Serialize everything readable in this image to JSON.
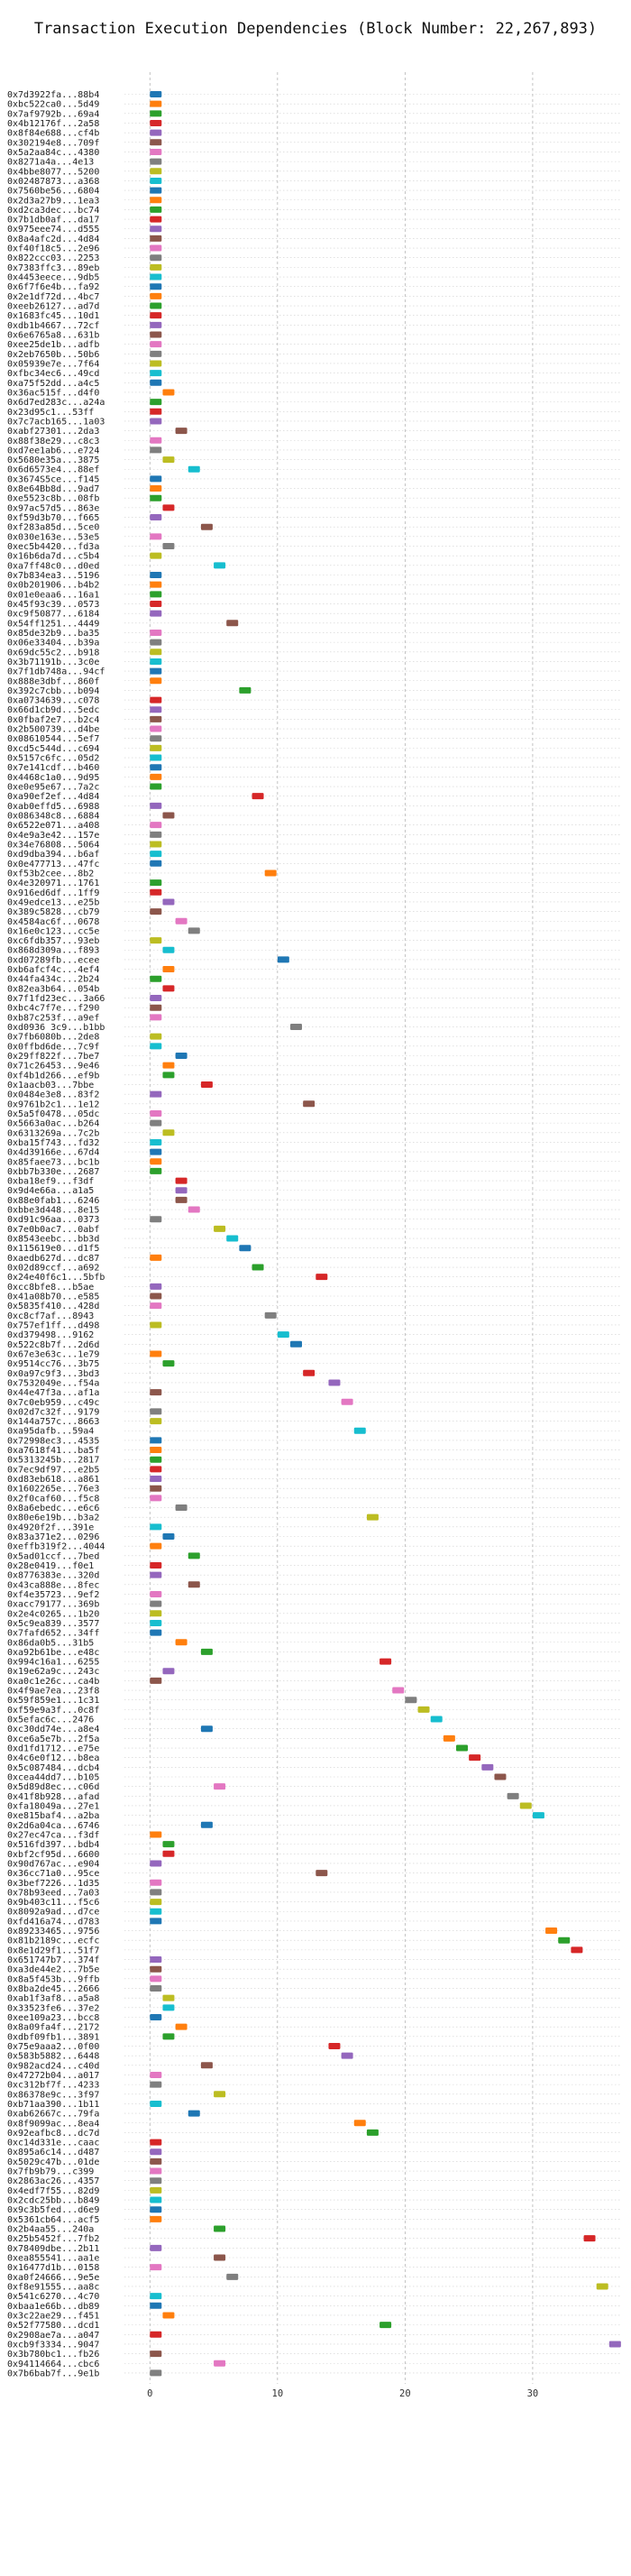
{
  "chart_data": {
    "type": "bar",
    "orientation": "horizontal-gantt",
    "title": "Transaction Execution Dependencies (Block Number: 22,267,893)",
    "xlabel": "",
    "ylabel": "",
    "xlim": [
      -2,
      37
    ],
    "xticks": [
      0,
      10,
      20,
      30
    ],
    "grid": true,
    "legend": "none",
    "palette": [
      "#1f77b4",
      "#ff7f0e",
      "#2ca02c",
      "#d62728",
      "#9467bd",
      "#8c564b",
      "#e377c2",
      "#7f7f7f",
      "#bcbd22",
      "#17becf"
    ],
    "transactions": [
      {
        "label": "0x7d3922fa...88b4",
        "start": 0
      },
      {
        "label": "0xbc522ca0...5d49",
        "start": 0
      },
      {
        "label": "0x7af9792b...69a4",
        "start": 0
      },
      {
        "label": "0x4b12176f...2a58",
        "start": 0
      },
      {
        "label": "0x8f84e688...cf4b",
        "start": 0
      },
      {
        "label": "0x302194e8...709f",
        "start": 0
      },
      {
        "label": "0x5a2aa84c...4380",
        "start": 0
      },
      {
        "label": "0x8271a4a...4e13",
        "start": 0
      },
      {
        "label": "0x4bbe8077...5200",
        "start": 0
      },
      {
        "label": "0x02487873...a368",
        "start": 0
      },
      {
        "label": "0x7560be56...6804",
        "start": 0
      },
      {
        "label": "0x2d3a27b9...1ea3",
        "start": 0
      },
      {
        "label": "0xd2ca3dec...bc74",
        "start": 0
      },
      {
        "label": "0x7b1db0af...da17",
        "start": 0
      },
      {
        "label": "0x975eee74...d555",
        "start": 0
      },
      {
        "label": "0x8a4afc2d...4d84",
        "start": 0
      },
      {
        "label": "0xf40f18c5...2e96",
        "start": 0
      },
      {
        "label": "0x822ccc03...2253",
        "start": 0
      },
      {
        "label": "0x7383ffc3...89eb",
        "start": 0
      },
      {
        "label": "0x4453eece...9db5",
        "start": 0
      },
      {
        "label": "0x6f7f6e4b...fa92",
        "start": 0
      },
      {
        "label": "0x2e1df72d...4bc7",
        "start": 0
      },
      {
        "label": "0xeeb26127...ad7d",
        "start": 0
      },
      {
        "label": "0x1683fc45...10d1",
        "start": 0
      },
      {
        "label": "0xdb1b4667...72cf",
        "start": 0
      },
      {
        "label": "0x6e6765a8...631b",
        "start": 0
      },
      {
        "label": "0xee25de1b...adfb",
        "start": 0
      },
      {
        "label": "0x2eb7650b...50b6",
        "start": 0
      },
      {
        "label": "0x05939e7e...7f64",
        "start": 0
      },
      {
        "label": "0xfbc34ec6...49cd",
        "start": 0
      },
      {
        "label": "0xa75f52dd...a4c5",
        "start": 0
      },
      {
        "label": "0x36ac515f...d4f0",
        "start": 1
      },
      {
        "label": "0x6d7ed283c...a24a",
        "start": 0
      },
      {
        "label": "0x23d95c1...53ff",
        "start": 0
      },
      {
        "label": "0x7c7acb165...1a03",
        "start": 0
      },
      {
        "label": "0xabf27301...2da3",
        "start": 2
      },
      {
        "label": "0x88f38e29...c8c3",
        "start": 0
      },
      {
        "label": "0xd7ee1ab6...e724",
        "start": 0
      },
      {
        "label": "0x5680e35a...3875",
        "start": 1
      },
      {
        "label": "0x6d6573e4...88ef",
        "start": 3
      },
      {
        "label": "0x3674S5ce...f145",
        "start": 0
      },
      {
        "label": "0x8e64Bb8d...9ad7",
        "start": 0
      },
      {
        "label": "0xe5523c8b...08fb",
        "start": 0
      },
      {
        "label": "0x97ac57d5...863e",
        "start": 1
      },
      {
        "label": "0xf59d3b70...f665",
        "start": 0
      },
      {
        "label": "0xf283a85d...5ce0",
        "start": 4
      },
      {
        "label": "0x030e163e...53e5",
        "start": 0
      },
      {
        "label": "0xec5b4420...fd3a",
        "start": 1
      },
      {
        "label": "0x16b6da7d...c5b4",
        "start": 0
      },
      {
        "label": "0xa7ff48c0...d0ed",
        "start": 5
      },
      {
        "label": "0x7b834ea3...5196",
        "start": 0
      },
      {
        "label": "0x0b201906...b4b2",
        "start": 0
      },
      {
        "label": "0x01e0eaa6...16a1",
        "start": 0
      },
      {
        "label": "0x45f93c39...0573",
        "start": 0
      },
      {
        "label": "0xc9f50877...6184",
        "start": 0
      },
      {
        "label": "0x54ff1251...4449",
        "start": 6
      },
      {
        "label": "0x85de32b9...ba35",
        "start": 0
      },
      {
        "label": "0x06e33404...b39a",
        "start": 0
      },
      {
        "label": "0x69dc55c2...b918",
        "start": 0
      },
      {
        "label": "0x3b71191b...3c0e",
        "start": 0
      },
      {
        "label": "0x7f1db748a...94cf",
        "start": 0
      },
      {
        "label": "0x888e3dbf...860f",
        "start": 0
      },
      {
        "label": "0x392c7cbb...b094",
        "start": 7
      },
      {
        "label": "0xa0734639...c078",
        "start": 0
      },
      {
        "label": "0x66d1cb9d...5edc",
        "start": 0
      },
      {
        "label": "0x0fbaf2e7...b2c4",
        "start": 0
      },
      {
        "label": "0x2b500739...d4be",
        "start": 0
      },
      {
        "label": "0x08610544...5ef7",
        "start": 0
      },
      {
        "label": "0xcd5c544d...c694",
        "start": 0
      },
      {
        "label": "0x5157c6fc...05d2",
        "start": 0
      },
      {
        "label": "0x7e141cdf...b460",
        "start": 0
      },
      {
        "label": "0x4468c1a0...9d95",
        "start": 0
      },
      {
        "label": "0xe0e95e67...7a2c",
        "start": 0
      },
      {
        "label": "0xa90ef2ef...4d84",
        "start": 8
      },
      {
        "label": "0xab0effd5...6988",
        "start": 0
      },
      {
        "label": "0x086348c8...6884",
        "start": 1
      },
      {
        "label": "0x6522e071...a408",
        "start": 0
      },
      {
        "label": "0x4e9a3e42...157e",
        "start": 0
      },
      {
        "label": "0x34e76808...5064",
        "start": 0
      },
      {
        "label": "0xd9dba394...b6af",
        "start": 0
      },
      {
        "label": "0x0e477713...47fc",
        "start": 0
      },
      {
        "label": "0xf53b2cee...8b2",
        "start": 9
      },
      {
        "label": "0x4e320971...1761",
        "start": 0
      },
      {
        "label": "0x916ed6df...1ff9",
        "start": 0
      },
      {
        "label": "0x49edce13...e25b",
        "start": 1
      },
      {
        "label": "0x389c5828...cb79",
        "start": 0
      },
      {
        "label": "0x4584ac6f...0678",
        "start": 2
      },
      {
        "label": "0x16e0c123...cc5e",
        "start": 3
      },
      {
        "label": "0xc6fdb357...93eb",
        "start": 0
      },
      {
        "label": "0x868d309a...f893",
        "start": 1
      },
      {
        "label": "0xd07289fb...ecee",
        "start": 10
      },
      {
        "label": "0xb6afcf4c...4ef4",
        "start": 1
      },
      {
        "label": "0x44fa434c...2b24",
        "start": 0
      },
      {
        "label": "0x82ea3b64...054b",
        "start": 1
      },
      {
        "label": "0x7f1fd23ec...3a66",
        "start": 0
      },
      {
        "label": "0xbc4c7f7e...f290",
        "start": 0
      },
      {
        "label": "0xb87c253f...a9ef",
        "start": 0
      },
      {
        "label": "0xd0936 3c9...b1bb",
        "start": 11
      },
      {
        "label": "0x7fb6080b...2de8",
        "start": 0
      },
      {
        "label": "0x0ffbd6de...7c9f",
        "start": 0
      },
      {
        "label": "0x29ff822f...7be7",
        "start": 2
      },
      {
        "label": "0x71c26453...9e46",
        "start": 1
      },
      {
        "label": "0xf4b1d266...ef9b",
        "start": 1
      },
      {
        "label": "0x1aacb03...7bbe",
        "start": 4
      },
      {
        "label": "0x0484e3e8...83f2",
        "start": 0
      },
      {
        "label": "0x9761b2c1...1e12",
        "start": 12
      },
      {
        "label": "0x5a5f0478...05dc",
        "start": 0
      },
      {
        "label": "0x5663a0ac...b264",
        "start": 0
      },
      {
        "label": "0x6313269a...7c2b",
        "start": 1
      },
      {
        "label": "0xba15f743...fd32",
        "start": 0
      },
      {
        "label": "0x4d39166e...67d4",
        "start": 0
      },
      {
        "label": "0x85faee73...bc1b",
        "start": 0
      },
      {
        "label": "0xbb7b330e...2687",
        "start": 0
      },
      {
        "label": "0xba18ef9...f3df",
        "start": 2
      },
      {
        "label": "0x9d4e66a...a1a5",
        "start": 2
      },
      {
        "label": "0x88e0fab1...6246",
        "start": 2
      },
      {
        "label": "0xbbe3d448...8e15",
        "start": 3
      },
      {
        "label": "0xd91c96aa...0373",
        "start": 0
      },
      {
        "label": "0x7e0b0ac7...0abf",
        "start": 5
      },
      {
        "label": "0x8543eebc...bb3d",
        "start": 6
      },
      {
        "label": "0x115619e0...d1f5",
        "start": 7
      },
      {
        "label": "0xaedb627d...dc87",
        "start": 0
      },
      {
        "label": "0x02d89ccf...a692",
        "start": 8
      },
      {
        "label": "0x24e40f6c1...5bfb",
        "start": 13
      },
      {
        "label": "0xcc8bfe8...b5ae",
        "start": 0
      },
      {
        "label": "0x41a08b70...e585",
        "start": 0
      },
      {
        "label": "0x5835f410...428d",
        "start": 0
      },
      {
        "label": "0xc8cf7af...8943",
        "start": 9
      },
      {
        "label": "0x757ef1ff...d498",
        "start": 0
      },
      {
        "label": "0xd379498...9162",
        "start": 10
      },
      {
        "label": "0x522c8b7f...2d6d",
        "start": 11
      },
      {
        "label": "0x67e3e63c...1e79",
        "start": 0
      },
      {
        "label": "0x9514cc76...3b75",
        "start": 1
      },
      {
        "label": "0x0a97c9f3...3bd3",
        "start": 12
      },
      {
        "label": "0x7532049e...f54a",
        "start": 14
      },
      {
        "label": "0x44e47f3a...af1a",
        "start": 0
      },
      {
        "label": "0x7c0eb959...c49c",
        "start": 15
      },
      {
        "label": "0x02d7c32f...9179",
        "start": 0
      },
      {
        "label": "0x144a757c...8663",
        "start": 0
      },
      {
        "label": "0xa95dafb...59a4",
        "start": 16
      },
      {
        "label": "0x72998ec3...4535",
        "start": 0
      },
      {
        "label": "0xa7618f41...ba5f",
        "start": 0
      },
      {
        "label": "0x5313245b...2817",
        "start": 0
      },
      {
        "label": "0x7ec9df97...e2b5",
        "start": 0
      },
      {
        "label": "0xd83eb618...a861",
        "start": 0
      },
      {
        "label": "0x1602265e...76e3",
        "start": 0
      },
      {
        "label": "0x2f0caf60...f5c8",
        "start": 0
      },
      {
        "label": "0x8a6ebedc...e6c6",
        "start": 2
      },
      {
        "label": "0x80e6e19b...b3a2",
        "start": 17
      },
      {
        "label": "0x4920f2f...391e",
        "start": 0
      },
      {
        "label": "0x83a371e2...0296",
        "start": 1
      },
      {
        "label": "0xeffb319f2...4044",
        "start": 0
      },
      {
        "label": "0x5ad01ccf...7bed",
        "start": 3
      },
      {
        "label": "0x28e0419...f0e1",
        "start": 0
      },
      {
        "label": "0x8776383e...320d",
        "start": 0
      },
      {
        "label": "0x43ca888e...8fec",
        "start": 3
      },
      {
        "label": "0xf4e35723...9ef2",
        "start": 0
      },
      {
        "label": "0xacc79177...369b",
        "start": 0
      },
      {
        "label": "0x2e4c0265...1b20",
        "start": 0
      },
      {
        "label": "0x5c9ea839...3577",
        "start": 0
      },
      {
        "label": "0x7fafd652...34ff",
        "start": 0
      },
      {
        "label": "0x86da0b5...31b5",
        "start": 2
      },
      {
        "label": "0xa92b61be...e48c",
        "start": 4
      },
      {
        "label": "0x994c16a1...6255",
        "start": 18
      },
      {
        "label": "0x19e62a9c...243c",
        "start": 1
      },
      {
        "label": "0xa0c1e26c...ca4b",
        "start": 0
      },
      {
        "label": "0x4f9ae7ea...23f8",
        "start": 19
      },
      {
        "label": "0x59f859e1...1c31",
        "start": 20
      },
      {
        "label": "0xf59e9a3f...0c8f",
        "start": 21
      },
      {
        "label": "0x5efac6c...2476",
        "start": 22
      },
      {
        "label": "0xc30dd74e...a8e4",
        "start": 4
      },
      {
        "label": "0xce6a5e7b...2f5a",
        "start": 23
      },
      {
        "label": "0xd1fd1712...e75e",
        "start": 24
      },
      {
        "label": "0x4c6e0f12...b8ea",
        "start": 25
      },
      {
        "label": "0x5c087484...dcb4",
        "start": 26
      },
      {
        "label": "0xcea44dd7...b105",
        "start": 27
      },
      {
        "label": "0x5d89d8ec...c06d",
        "start": 5
      },
      {
        "label": "0x41f8b928...afad",
        "start": 28
      },
      {
        "label": "0xfa18049a...27e1",
        "start": 29
      },
      {
        "label": "0xe815baf4...a2ba",
        "start": 30
      },
      {
        "label": "0x2d6a04ca...6746",
        "start": 4
      },
      {
        "label": "0x27ec47ca...f3df",
        "start": 0
      },
      {
        "label": "0x516fd397...bdb4",
        "start": 1
      },
      {
        "label": "0xbf2cf95d...6600",
        "start": 1
      },
      {
        "label": "0x90d767ac...e904",
        "start": 0
      },
      {
        "label": "0x36cc71a0...95ce",
        "start": 13
      },
      {
        "label": "0x3bef7226...1d35",
        "start": 0
      },
      {
        "label": "0x78b93eed...7a03",
        "start": 0
      },
      {
        "label": "0x9b403c11...f5c6",
        "start": 0
      },
      {
        "label": "0x8092a9ad...d7ce",
        "start": 0
      },
      {
        "label": "0xfd416a74...d783",
        "start": 0
      },
      {
        "label": "0x89233465...9756",
        "start": 31
      },
      {
        "label": "0x81b2189c...ecfc",
        "start": 32
      },
      {
        "label": "0x8e1d29f1...51f7",
        "start": 33
      },
      {
        "label": "0x651747b7...374f",
        "start": 0
      },
      {
        "label": "0xa3de44e2...7b5e",
        "start": 0
      },
      {
        "label": "0x8a5f453b...9ffb",
        "start": 0
      },
      {
        "label": "0x8ba2de45...2666",
        "start": 0
      },
      {
        "label": "0xab1f3af8...a5a8",
        "start": 1
      },
      {
        "label": "0x33523fe6...37e2",
        "start": 1
      },
      {
        "label": "0xee109a23...bcc8",
        "start": 0
      },
      {
        "label": "0x8a09fa4f...2172",
        "start": 2
      },
      {
        "label": "0xdbf09fb1...3891",
        "start": 1
      },
      {
        "label": "0x75e9aaa2...0f00",
        "start": 14
      },
      {
        "label": "0x583b5882...6448",
        "start": 15
      },
      {
        "label": "0x982acd24...c40d",
        "start": 4
      },
      {
        "label": "0x47272b04...a017",
        "start": 0
      },
      {
        "label": "0xc312bf7f...4233",
        "start": 0
      },
      {
        "label": "0x86378e9c...3f97",
        "start": 5
      },
      {
        "label": "0xb71aa390...1b11",
        "start": 0
      },
      {
        "label": "0xab62667c...79fa",
        "start": 3
      },
      {
        "label": "0x8f9099ac...8ea4",
        "start": 16
      },
      {
        "label": "0x92eafbc8...dc7d",
        "start": 17
      },
      {
        "label": "0xc14d331e...caac",
        "start": 0
      },
      {
        "label": "0x895a6c14...d487",
        "start": 0
      },
      {
        "label": "0x5029c47b...01de",
        "start": 0
      },
      {
        "label": "0x7fb9b79...c399",
        "start": 0
      },
      {
        "label": "0x2863ac26...4357",
        "start": 0
      },
      {
        "label": "0x4edf7f55...82d9",
        "start": 0
      },
      {
        "label": "0x2cdc25bb...b849",
        "start": 0
      },
      {
        "label": "0x9c3b5fed...d6e9",
        "start": 0
      },
      {
        "label": "0x5361cb64...acf5",
        "start": 0
      },
      {
        "label": "0x2b4aa55...240a",
        "start": 5
      },
      {
        "label": "0x25b5452f...7fb2",
        "start": 34
      },
      {
        "label": "0x78409dbe...2b11",
        "start": 0
      },
      {
        "label": "0xea855541...aa1e",
        "start": 5
      },
      {
        "label": "0x16477d1b...0158",
        "start": 0
      },
      {
        "label": "0xa0f24666...9e5e",
        "start": 6
      },
      {
        "label": "0xf8e91555...aa8c",
        "start": 35
      },
      {
        "label": "0x541c6270...4c70",
        "start": 0
      },
      {
        "label": "0xbaa1e66b...db89",
        "start": 0
      },
      {
        "label": "0x3c22ae29...f451",
        "start": 1
      },
      {
        "label": "0x52f77580...dcd1",
        "start": 18
      },
      {
        "label": "0x2908ae7a...a047",
        "start": 0
      },
      {
        "label": "0xcb9f3334...9047",
        "start": 36
      },
      {
        "label": "0x3b780bc1...fb26",
        "start": 0
      },
      {
        "label": "0x94114664...cbc6",
        "start": 5
      },
      {
        "label": "0x7b6bab7f...9e1b",
        "start": 0
      }
    ]
  }
}
